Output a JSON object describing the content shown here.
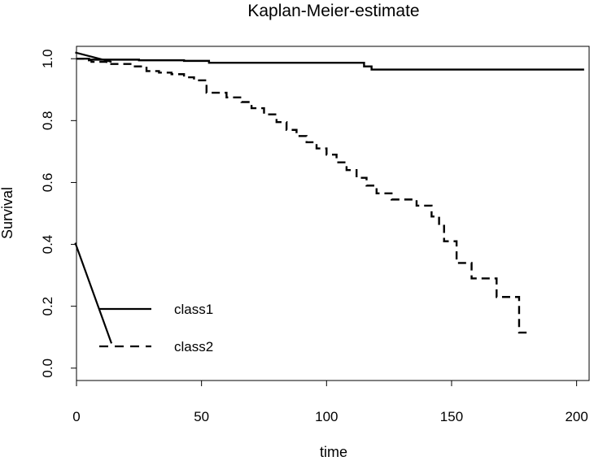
{
  "chart_data": {
    "type": "line",
    "title": "Kaplan-Meier-estimate",
    "xlabel": "time",
    "ylabel": "Survival",
    "xlim": [
      0,
      205
    ],
    "ylim": [
      -0.04,
      1.04
    ],
    "x_ticks": [
      {
        "value": 0,
        "label": "0"
      },
      {
        "value": 50,
        "label": "50"
      },
      {
        "value": 100,
        "label": "100"
      },
      {
        "value": 150,
        "label": "150"
      },
      {
        "value": 200,
        "label": "200"
      }
    ],
    "y_ticks": [
      {
        "value": 0.0,
        "label": "0.0"
      },
      {
        "value": 0.2,
        "label": "0.2"
      },
      {
        "value": 0.4,
        "label": "0.4"
      },
      {
        "value": 0.6,
        "label": "0.6"
      },
      {
        "value": 0.8,
        "label": "0.8"
      },
      {
        "value": 1.0,
        "label": "1.0"
      }
    ],
    "grid": false,
    "legend_position": "bottom-left",
    "series": [
      {
        "name": "class1",
        "style": "solid",
        "color": "#000000",
        "x": [
          0,
          5,
          25,
          43,
          53,
          115,
          118,
          203
        ],
        "y": [
          1.0,
          0.997,
          0.995,
          0.993,
          0.987,
          0.975,
          0.965,
          0.965
        ]
      },
      {
        "name": "class2",
        "style": "dashed",
        "color": "#000000",
        "x": [
          0,
          3,
          6,
          12,
          22,
          28,
          33,
          38,
          43,
          47,
          52,
          60,
          66,
          70,
          75,
          80,
          84,
          88,
          92,
          96,
          100,
          104,
          108,
          112,
          116,
          120,
          126,
          136,
          142,
          145,
          147,
          152,
          158,
          168,
          177,
          180
        ],
        "y": [
          1.0,
          0.995,
          0.99,
          0.983,
          0.975,
          0.96,
          0.955,
          0.95,
          0.94,
          0.93,
          0.89,
          0.875,
          0.86,
          0.84,
          0.82,
          0.795,
          0.77,
          0.75,
          0.73,
          0.71,
          0.69,
          0.665,
          0.64,
          0.615,
          0.59,
          0.565,
          0.545,
          0.525,
          0.49,
          0.46,
          0.41,
          0.34,
          0.29,
          0.23,
          0.115,
          0.115
        ]
      }
    ],
    "annotations": [
      {
        "style": "solid",
        "x": [
          -0.5,
          14
        ],
        "y": [
          1.02,
          0.99
        ]
      },
      {
        "style": "solid",
        "x": [
          -0.5,
          14
        ],
        "y": [
          0.405,
          0.08
        ]
      }
    ]
  }
}
